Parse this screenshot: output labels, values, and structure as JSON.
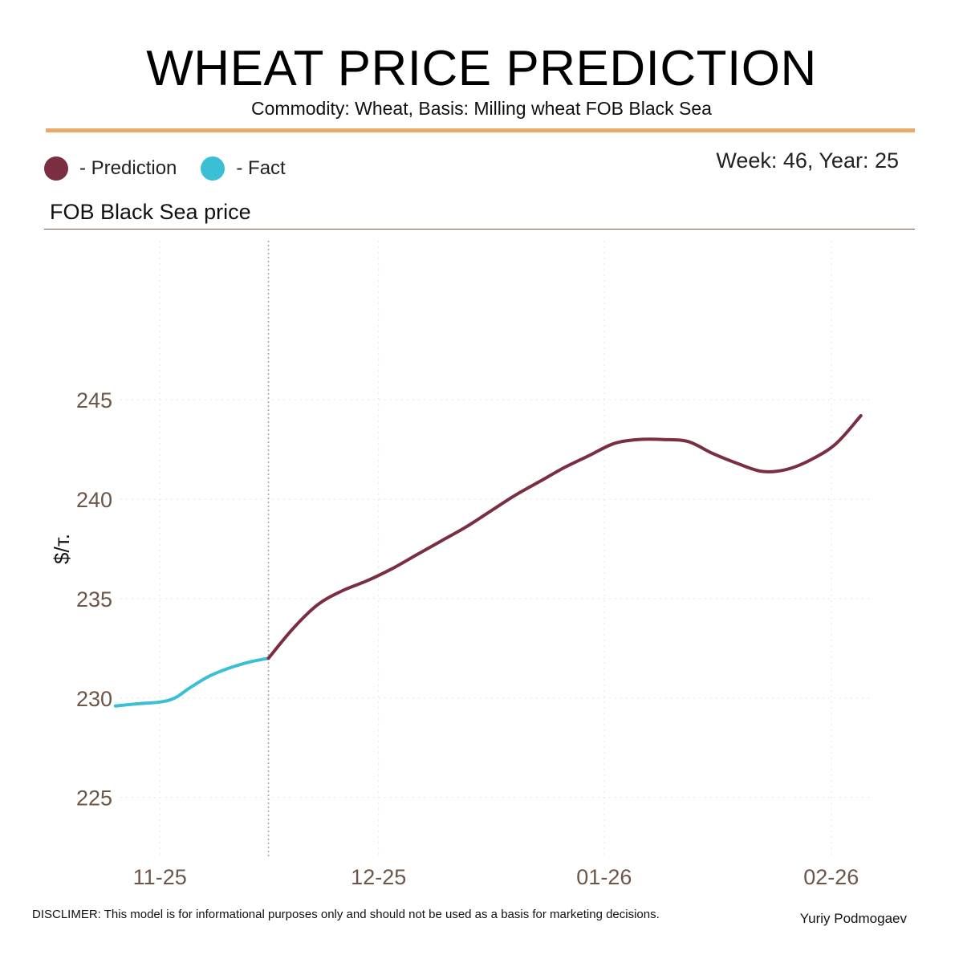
{
  "header": {
    "title": "WHEAT PRICE PREDICTION",
    "subtitle": "Commodity: Wheat, Basis: Milling wheat FOB Black Sea"
  },
  "legend": {
    "prediction_label": "- Prediction",
    "fact_label": "- Fact",
    "prediction_color": "#7a2e42",
    "fact_color": "#3bbfd4"
  },
  "week_label": "Week: 46, Year: 25",
  "panel_title": "FOB Black Sea price",
  "footer": {
    "disclaimer": "DISCLIMER:  This model is for informational purposes only and should not be used as a basis for marketing decisions.",
    "author": "Yuriy Podmogaev"
  },
  "chart_data": {
    "type": "line",
    "title": "FOB Black Sea price",
    "xlabel": "",
    "ylabel": "$/т.",
    "ylim": [
      222,
      253
    ],
    "yticks": [
      225,
      230,
      235,
      240,
      245
    ],
    "xlim": [
      -0.8,
      14.4
    ],
    "xticks": [
      {
        "label": "11-25",
        "x": 0.0
      },
      {
        "label": "12-25",
        "x": 4.43
      },
      {
        "label": "01-26",
        "x": 9.0
      },
      {
        "label": "02-26",
        "x": 13.6
      }
    ],
    "split_x": 2.2,
    "grid": true,
    "series": [
      {
        "name": "Fact",
        "color": "#3bbfd4",
        "x": [
          -0.9,
          -0.5,
          0.0,
          0.3,
          0.6,
          1.0,
          1.4,
          1.8,
          2.2
        ],
        "y": [
          229.6,
          229.7,
          229.8,
          230.0,
          230.5,
          231.1,
          231.5,
          231.8,
          232.0
        ]
      },
      {
        "name": "Prediction",
        "color": "#7a2e42",
        "x": [
          2.2,
          2.7,
          3.2,
          3.7,
          4.2,
          4.7,
          5.2,
          5.7,
          6.2,
          6.7,
          7.2,
          7.7,
          8.2,
          8.7,
          9.2,
          9.7,
          10.2,
          10.7,
          11.2,
          11.7,
          12.2,
          12.7,
          13.2,
          13.7,
          14.2
        ],
        "y": [
          232.0,
          233.5,
          234.7,
          235.4,
          235.9,
          236.5,
          237.2,
          237.9,
          238.6,
          239.4,
          240.2,
          240.9,
          241.6,
          242.2,
          242.8,
          243.0,
          243.0,
          242.9,
          242.3,
          241.8,
          241.4,
          241.5,
          242.0,
          242.8,
          244.2
        ]
      }
    ]
  }
}
